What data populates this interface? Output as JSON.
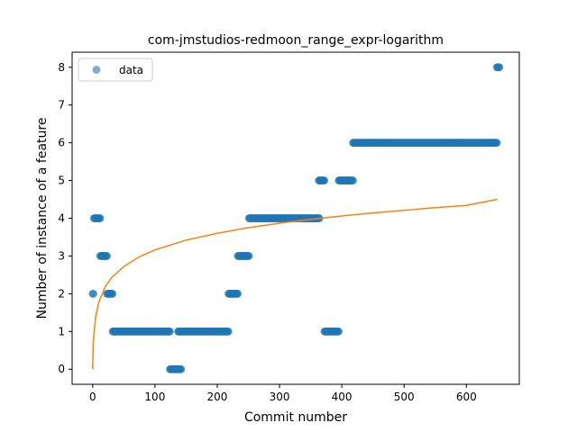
{
  "chart_data": {
    "type": "scatter",
    "title": "com-jmstudios-redmoon_range_expr-logarithm",
    "xlabel": "Commit number",
    "ylabel": "Number of instance of a feature",
    "xlim": [
      -33,
      685
    ],
    "ylim": [
      -0.4,
      8.4
    ],
    "xticks": [
      0,
      100,
      200,
      300,
      400,
      500,
      600
    ],
    "yticks": [
      0,
      1,
      2,
      3,
      4,
      5,
      6,
      7,
      8
    ],
    "grid": false,
    "legend": {
      "placement": "upper-left",
      "entries": [
        "data"
      ]
    },
    "colors": {
      "data": "#1f77b4",
      "fit": "#ff7f0e"
    },
    "series": [
      {
        "name": "data",
        "kind": "scatter",
        "segments": [
          {
            "x_start": 0,
            "x_end": 1,
            "y": 2
          },
          {
            "x_start": 2,
            "x_end": 12,
            "y": 4
          },
          {
            "x_start": 12,
            "x_end": 23,
            "y": 3
          },
          {
            "x_start": 23,
            "x_end": 32,
            "y": 2
          },
          {
            "x_start": 32,
            "x_end": 124,
            "y": 1
          },
          {
            "x_start": 124,
            "x_end": 142,
            "y": 0
          },
          {
            "x_start": 137,
            "x_end": 218,
            "y": 1
          },
          {
            "x_start": 218,
            "x_end": 233,
            "y": 2
          },
          {
            "x_start": 233,
            "x_end": 251,
            "y": 3
          },
          {
            "x_start": 251,
            "x_end": 364,
            "y": 4
          },
          {
            "x_start": 363,
            "x_end": 372,
            "y": 5
          },
          {
            "x_start": 372,
            "x_end": 395,
            "y": 1
          },
          {
            "x_start": 395,
            "x_end": 418,
            "y": 5
          },
          {
            "x_start": 418,
            "x_end": 649,
            "y": 6
          },
          {
            "x_start": 649,
            "x_end": 653,
            "y": 8
          }
        ]
      },
      {
        "kind": "line",
        "function": "logarithmic",
        "points": [
          [
            0,
            0
          ],
          [
            0.3,
            0.21
          ],
          [
            1,
            0.69
          ],
          [
            2,
            0.96
          ],
          [
            5,
            1.42
          ],
          [
            10,
            1.78
          ],
          [
            20,
            2.18
          ],
          [
            30,
            2.42
          ],
          [
            50,
            2.72
          ],
          [
            75,
            2.98
          ],
          [
            100,
            3.16
          ],
          [
            150,
            3.42
          ],
          [
            200,
            3.6
          ],
          [
            250,
            3.75
          ],
          [
            300,
            3.87
          ],
          [
            350,
            3.97
          ],
          [
            400,
            4.06
          ],
          [
            450,
            4.14
          ],
          [
            500,
            4.21
          ],
          [
            550,
            4.28
          ],
          [
            600,
            4.34
          ],
          [
            650,
            4.5
          ]
        ]
      }
    ]
  }
}
